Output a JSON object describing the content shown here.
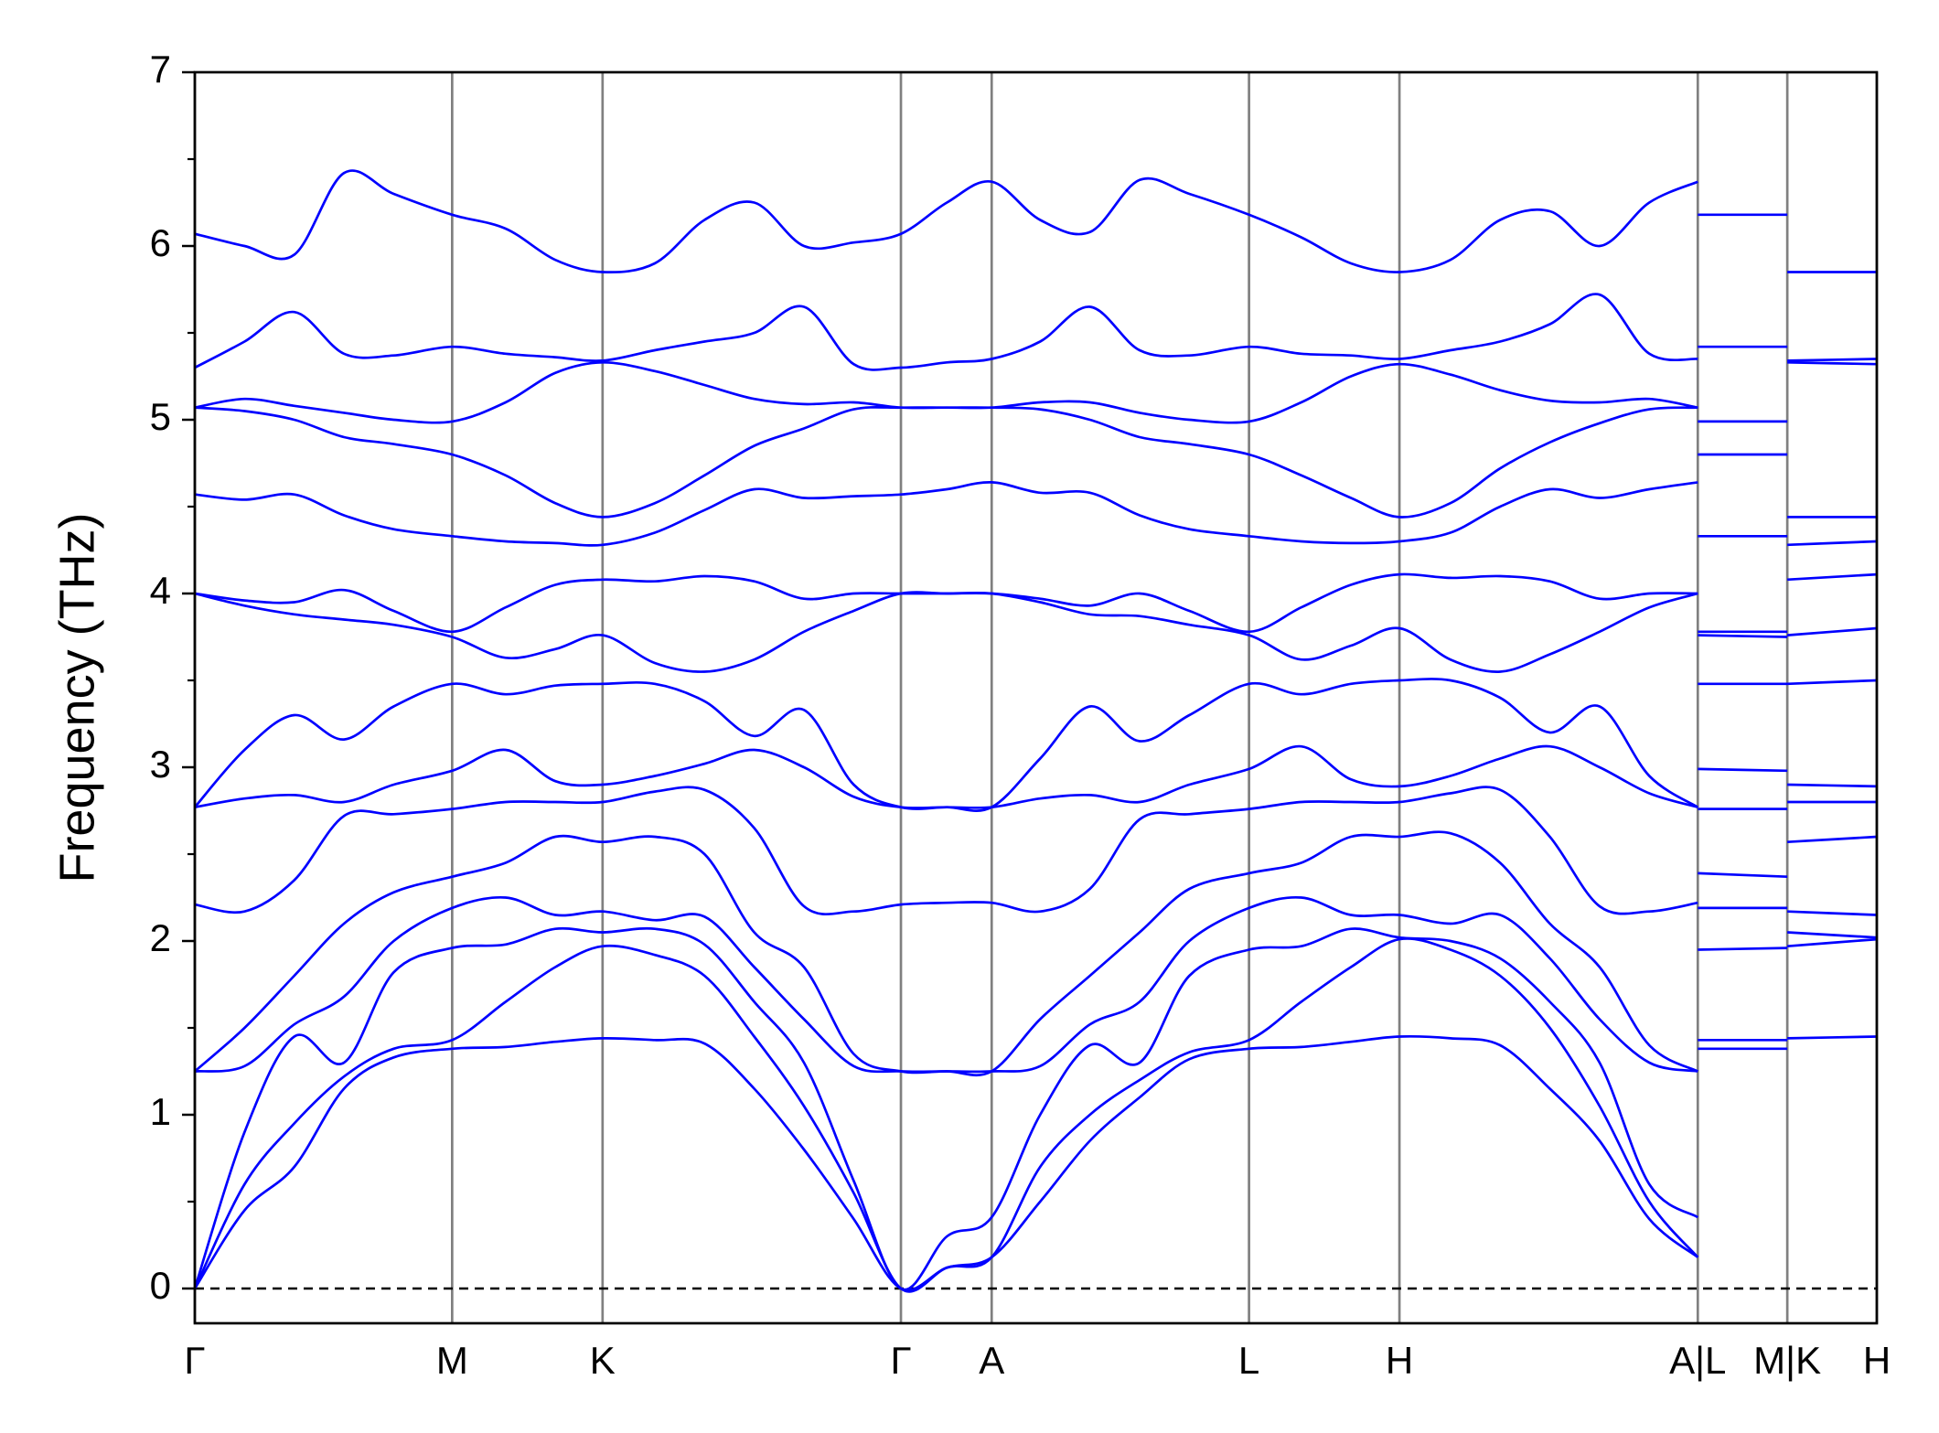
{
  "chart_data": {
    "type": "line",
    "ylabel": "Frequency (THz)",
    "xticks": [
      {
        "value": 0,
        "label": "Γ"
      },
      {
        "value": 2.07,
        "label": "M"
      },
      {
        "value": 3.28,
        "label": "K"
      },
      {
        "value": 5.68,
        "label": "Γ"
      },
      {
        "value": 6.41,
        "label": "A"
      },
      {
        "value": 8.48,
        "label": "L"
      },
      {
        "value": 9.69,
        "label": "H"
      },
      {
        "value": 12.09,
        "label": "A|L"
      },
      {
        "value": 12.81,
        "label": "M|K"
      },
      {
        "value": 13.53,
        "label": "H"
      }
    ],
    "xlim": [
      0,
      13.53
    ],
    "ylim": [
      -0.2,
      7
    ],
    "yticks": [
      0,
      1,
      2,
      3,
      4,
      5,
      6,
      7
    ],
    "yticks_minor": [
      0.5,
      1.5,
      2.5,
      3.5,
      4.5,
      5.5,
      6.5
    ],
    "grid_color": "#808080",
    "x": [
      0,
      0.4,
      0.8,
      1.2,
      1.6,
      2.07,
      2.5,
      2.9,
      3.28,
      3.7,
      4.1,
      4.5,
      4.9,
      5.3,
      5.68,
      6.05,
      6.41,
      6.8,
      7.2,
      7.6,
      8.0,
      8.48,
      8.9,
      9.3,
      9.69,
      10.1,
      10.5,
      10.9,
      11.3,
      11.7,
      12.09,
      12.09,
      12.09,
      12.81,
      12.81,
      12.81,
      13.53
    ],
    "series": [
      {
        "color": "#0000ff",
        "values": [
          0,
          0.45,
          0.7,
          1.15,
          1.33,
          1.38,
          1.39,
          1.42,
          1.44,
          1.43,
          1.41,
          1.15,
          0.8,
          0.4,
          0,
          0.12,
          0.18,
          0.5,
          0.85,
          1.1,
          1.32,
          1.38,
          1.39,
          1.42,
          1.45,
          1.44,
          1.4,
          1.15,
          0.85,
          0.4,
          0.18,
          null,
          1.38,
          1.38,
          null,
          1.44,
          1.45
        ]
      },
      {
        "color": "#0000ff",
        "values": [
          0,
          0.6,
          0.95,
          1.22,
          1.38,
          1.43,
          1.65,
          1.85,
          1.97,
          1.92,
          1.8,
          1.45,
          1.05,
          0.55,
          0,
          0.12,
          0.18,
          0.7,
          1.0,
          1.2,
          1.36,
          1.43,
          1.65,
          1.85,
          2.01,
          1.95,
          1.8,
          1.5,
          1.05,
          0.5,
          0.18,
          null,
          1.43,
          1.43,
          null,
          1.97,
          2.01
        ]
      },
      {
        "color": "#0000ff",
        "values": [
          0,
          0.9,
          1.45,
          1.3,
          1.82,
          1.96,
          1.98,
          2.07,
          2.05,
          2.07,
          1.98,
          1.65,
          1.3,
          0.62,
          0,
          0.3,
          0.41,
          1.0,
          1.4,
          1.3,
          1.8,
          1.95,
          1.97,
          2.07,
          2.02,
          2.0,
          1.9,
          1.65,
          1.3,
          0.6,
          0.41,
          null,
          1.95,
          1.96,
          null,
          2.05,
          2.02
        ]
      },
      {
        "color": "#0000ff",
        "values": [
          1.25,
          1.28,
          1.52,
          1.68,
          2.0,
          2.19,
          2.25,
          2.15,
          2.17,
          2.12,
          2.14,
          1.85,
          1.55,
          1.28,
          1.25,
          1.25,
          1.25,
          1.28,
          1.52,
          1.65,
          2.0,
          2.19,
          2.25,
          2.15,
          2.15,
          2.1,
          2.15,
          1.9,
          1.55,
          1.3,
          1.25,
          null,
          2.19,
          2.19,
          null,
          2.17,
          2.15
        ]
      },
      {
        "color": "#0000ff",
        "values": [
          1.25,
          1.5,
          1.8,
          2.1,
          2.28,
          2.37,
          2.45,
          2.6,
          2.57,
          2.6,
          2.5,
          2.05,
          1.85,
          1.35,
          1.25,
          1.25,
          1.25,
          1.55,
          1.8,
          2.05,
          2.3,
          2.39,
          2.45,
          2.6,
          2.6,
          2.62,
          2.45,
          2.1,
          1.85,
          1.4,
          1.25,
          null,
          2.39,
          2.37,
          null,
          2.57,
          2.6
        ]
      },
      {
        "color": "#0000ff",
        "values": [
          2.21,
          2.17,
          2.35,
          2.72,
          2.73,
          2.76,
          2.8,
          2.8,
          2.8,
          2.86,
          2.87,
          2.65,
          2.2,
          2.17,
          2.21,
          2.22,
          2.22,
          2.17,
          2.3,
          2.7,
          2.73,
          2.76,
          2.8,
          2.8,
          2.8,
          2.85,
          2.87,
          2.6,
          2.2,
          2.17,
          2.22,
          null,
          2.76,
          2.76,
          null,
          2.8,
          2.8
        ]
      },
      {
        "color": "#0000ff",
        "values": [
          2.77,
          2.82,
          2.84,
          2.8,
          2.9,
          2.98,
          3.1,
          2.92,
          2.9,
          2.95,
          3.02,
          3.1,
          3.0,
          2.83,
          2.77,
          2.77,
          2.77,
          2.82,
          2.84,
          2.8,
          2.9,
          2.99,
          3.12,
          2.93,
          2.89,
          2.95,
          3.05,
          3.12,
          3.0,
          2.85,
          2.77,
          null,
          2.99,
          2.98,
          null,
          2.9,
          2.89
        ]
      },
      {
        "color": "#0000ff",
        "values": [
          2.77,
          3.1,
          3.3,
          3.16,
          3.35,
          3.48,
          3.42,
          3.47,
          3.48,
          3.48,
          3.38,
          3.18,
          3.33,
          2.9,
          2.77,
          2.77,
          2.77,
          3.05,
          3.35,
          3.15,
          3.3,
          3.48,
          3.42,
          3.48,
          3.5,
          3.5,
          3.4,
          3.2,
          3.35,
          2.95,
          2.77,
          null,
          3.48,
          3.48,
          null,
          3.48,
          3.5
        ]
      },
      {
        "color": "#0000ff",
        "values": [
          4.0,
          3.93,
          3.88,
          3.85,
          3.82,
          3.75,
          3.63,
          3.68,
          3.76,
          3.6,
          3.55,
          3.62,
          3.78,
          3.9,
          4.0,
          4.0,
          4.0,
          3.95,
          3.88,
          3.87,
          3.82,
          3.76,
          3.62,
          3.7,
          3.8,
          3.62,
          3.55,
          3.65,
          3.78,
          3.92,
          4.0,
          null,
          3.76,
          3.75,
          null,
          3.76,
          3.8
        ]
      },
      {
        "color": "#0000ff",
        "values": [
          4.0,
          3.96,
          3.95,
          4.02,
          3.9,
          3.78,
          3.92,
          4.05,
          4.08,
          4.07,
          4.1,
          4.07,
          3.97,
          4.0,
          4.0,
          4.0,
          4.0,
          3.97,
          3.93,
          4.0,
          3.9,
          3.78,
          3.92,
          4.05,
          4.11,
          4.09,
          4.1,
          4.07,
          3.97,
          4.0,
          4.0,
          null,
          3.78,
          3.78,
          null,
          4.08,
          4.11
        ]
      },
      {
        "color": "#0000ff",
        "values": [
          4.57,
          4.54,
          4.57,
          4.45,
          4.37,
          4.33,
          4.3,
          4.29,
          4.28,
          4.35,
          4.48,
          4.6,
          4.55,
          4.56,
          4.57,
          4.6,
          4.64,
          4.58,
          4.58,
          4.45,
          4.37,
          4.33,
          4.3,
          4.29,
          4.3,
          4.35,
          4.5,
          4.6,
          4.55,
          4.6,
          4.64,
          null,
          4.33,
          4.33,
          null,
          4.28,
          4.3
        ]
      },
      {
        "color": "#0000ff",
        "values": [
          5.07,
          5.05,
          5.0,
          4.9,
          4.86,
          4.8,
          4.68,
          4.52,
          4.44,
          4.52,
          4.68,
          4.85,
          4.95,
          5.06,
          5.07,
          5.07,
          5.07,
          5.06,
          5.0,
          4.9,
          4.86,
          4.8,
          4.68,
          4.55,
          4.44,
          4.52,
          4.72,
          4.87,
          4.98,
          5.06,
          5.07,
          null,
          4.8,
          4.8,
          null,
          4.44,
          4.44
        ]
      },
      {
        "color": "#0000ff",
        "values": [
          5.07,
          5.12,
          5.08,
          5.04,
          5.0,
          4.99,
          5.1,
          5.27,
          5.33,
          5.28,
          5.2,
          5.12,
          5.09,
          5.1,
          5.07,
          5.07,
          5.07,
          5.1,
          5.1,
          5.04,
          5.0,
          4.99,
          5.1,
          5.25,
          5.32,
          5.26,
          5.17,
          5.11,
          5.1,
          5.12,
          5.07,
          null,
          4.99,
          4.99,
          null,
          5.33,
          5.32
        ]
      },
      {
        "color": "#0000ff",
        "values": [
          5.3,
          5.45,
          5.62,
          5.38,
          5.37,
          5.42,
          5.38,
          5.36,
          5.34,
          5.4,
          5.45,
          5.5,
          5.65,
          5.32,
          5.3,
          5.33,
          5.35,
          5.45,
          5.65,
          5.4,
          5.37,
          5.42,
          5.38,
          5.37,
          5.35,
          5.4,
          5.45,
          5.55,
          5.72,
          5.38,
          5.35,
          null,
          5.42,
          5.42,
          null,
          5.34,
          5.35
        ]
      },
      {
        "color": "#0000ff",
        "values": [
          6.07,
          6.0,
          5.95,
          6.42,
          6.3,
          6.18,
          6.1,
          5.92,
          5.85,
          5.9,
          6.15,
          6.25,
          6.0,
          6.02,
          6.07,
          6.25,
          6.37,
          6.15,
          6.08,
          6.38,
          6.3,
          6.18,
          6.05,
          5.9,
          5.85,
          5.92,
          6.15,
          6.2,
          6.0,
          6.25,
          6.37,
          null,
          6.18,
          6.18,
          null,
          5.85,
          5.85
        ]
      }
    ]
  }
}
